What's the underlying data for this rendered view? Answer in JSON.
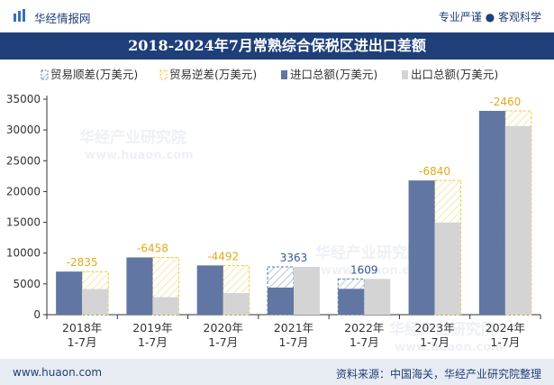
{
  "header": {
    "brand": "华经情报网",
    "tagline": "专业严谨 ● 客观科学"
  },
  "footer": {
    "url": "www.huaon.com",
    "source": "资料来源：中国海关，华经产业研究院整理"
  },
  "watermark": {
    "cn": "华经产业研究院",
    "en": "www.huaon.com"
  },
  "colors": {
    "title_bg": "#1f3f78",
    "export": "#6276a3",
    "import": "#d4d4d4",
    "balance_line": "#f2c83a",
    "balance_label": "#e0a81e",
    "surplus_line": "#5a79ad",
    "surplus_label": "#3b5994"
  },
  "chart_data": {
    "type": "bar",
    "title": "2018-2024年7月常熟综合保税区进出口差额",
    "categories": [
      [
        "2018年",
        "1-7月"
      ],
      [
        "2019年",
        "1-7月"
      ],
      [
        "2020年",
        "1-7月"
      ],
      [
        "2021年",
        "1-7月"
      ],
      [
        "2022年",
        "1-7月"
      ],
      [
        "2023年",
        "1-7月"
      ],
      [
        "2024年",
        "1-7月"
      ]
    ],
    "legend": [
      {
        "key": "surplus",
        "label": "贸易顺差(万美元)"
      },
      {
        "key": "deficit",
        "label": "贸易逆差(万美元)"
      },
      {
        "key": "export",
        "label": "进口总额(万美元)"
      },
      {
        "key": "import",
        "label": "出口总额(万美元)"
      }
    ],
    "series": [
      {
        "name": "进口总额(万美元)",
        "values": [
          7000,
          9300,
          8000,
          4400,
          4200,
          21800,
          33100
        ]
      },
      {
        "name": "出口总额(万美元)",
        "values": [
          4165,
          2842,
          3508,
          7763,
          5809,
          14960,
          30640
        ]
      }
    ],
    "balance_labels": [
      "-2835",
      "-6458",
      "-4492",
      "3363",
      "1609",
      "-6840",
      "-2460"
    ],
    "ylim": [
      0,
      35000
    ],
    "yticks": [
      "0",
      "5000",
      "10000",
      "15000",
      "20000",
      "25000",
      "30000",
      "35000"
    ],
    "grid": false
  }
}
